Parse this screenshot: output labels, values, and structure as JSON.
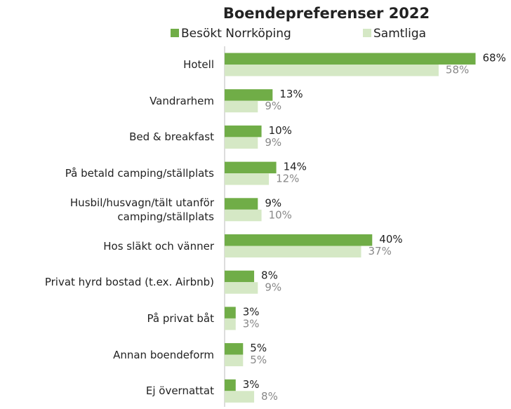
{
  "chart_data": {
    "type": "barh",
    "title": "Boendepreferenser 2022",
    "categories": [
      "Hotell",
      "Vandrarhem",
      "Bed & breakfast",
      "På betald camping/ställplats",
      "Husbil/husvagn/tält utanför camping/ställplats",
      "Hos släkt och vänner",
      "Privat hyrd bostad (t.ex. Airbnb)",
      "På privat båt",
      "Annan boendeform",
      "Ej övernattat"
    ],
    "series": [
      {
        "name": "Besökt Norrköping",
        "color": "#70ad47",
        "values": [
          68,
          13,
          10,
          14,
          9,
          40,
          8,
          3,
          5,
          3
        ],
        "value_labels": [
          "68%",
          "13%",
          "10%",
          "14%",
          "9%",
          "40%",
          "8%",
          "3%",
          "5%",
          "3%"
        ]
      },
      {
        "name": "Samtliga",
        "color": "#d5e8c5",
        "values": [
          58,
          9,
          9,
          12,
          10,
          37,
          9,
          3,
          5,
          8
        ],
        "value_labels": [
          "58%",
          "9%",
          "9%",
          "12%",
          "10%",
          "37%",
          "9%",
          "3%",
          "5%",
          "8%"
        ]
      }
    ],
    "xlim": [
      0,
      70
    ]
  }
}
